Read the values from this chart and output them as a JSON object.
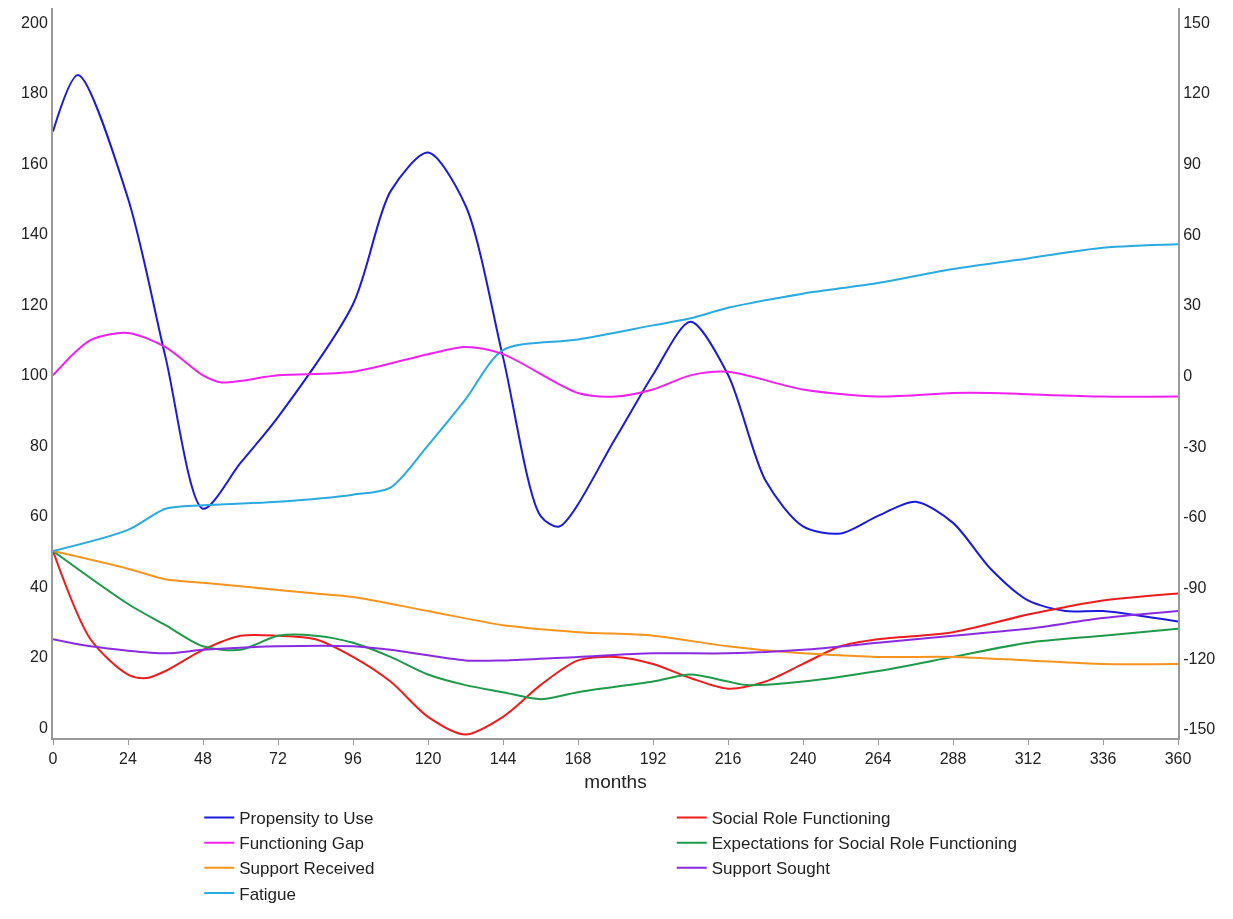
{
  "chart_data": {
    "type": "line",
    "xlabel": "months",
    "xlim": [
      0,
      360
    ],
    "xticks": [
      0,
      24,
      48,
      72,
      96,
      120,
      144,
      168,
      192,
      216,
      240,
      264,
      288,
      312,
      336,
      360
    ],
    "ylim": [
      -3,
      204
    ],
    "yticks": [
      0,
      20,
      40,
      60,
      80,
      100,
      120,
      140,
      160,
      180,
      200
    ],
    "y2lim": [
      -154,
      156
    ],
    "y2ticks": [
      -150,
      -120,
      -90,
      -60,
      -30,
      0,
      30,
      60,
      90,
      120,
      150
    ],
    "grid": false,
    "legend": "bottom",
    "marker": "none",
    "line_style": "solid",
    "series": [
      {
        "name": "Propensity to Use",
        "color": "#1a1adf",
        "x": [
          0,
          8,
          24,
          36,
          48,
          60,
          72,
          96,
          108,
          120,
          132,
          144,
          156,
          162,
          180,
          192,
          204,
          216,
          228,
          240,
          252,
          264,
          276,
          288,
          300,
          312,
          324,
          336,
          360
        ],
        "values": [
          169,
          185,
          150,
          105,
          62,
          75,
          88,
          120,
          152,
          163,
          148,
          105,
          60,
          57,
          82,
          100,
          115,
          100,
          70,
          57,
          55,
          60,
          64,
          58,
          45,
          36,
          33,
          33,
          30
        ]
      },
      {
        "name": "Social Role Functioning",
        "color": "#ee1c1c",
        "x": [
          0,
          12,
          24,
          30,
          36,
          48,
          60,
          72,
          84,
          96,
          108,
          120,
          132,
          144,
          156,
          168,
          180,
          192,
          204,
          216,
          228,
          240,
          252,
          264,
          288,
          312,
          336,
          360
        ],
        "values": [
          50,
          25,
          15,
          14,
          16,
          22,
          26,
          26,
          25,
          20,
          13,
          3,
          -2,
          3,
          12,
          19,
          20,
          18,
          14,
          11,
          13,
          18,
          23,
          25,
          27,
          32,
          36,
          38
        ]
      },
      {
        "name": "Functioning Gap",
        "color": "#f020f0",
        "axis": "y2",
        "x": [
          0,
          12,
          24,
          36,
          48,
          54,
          72,
          96,
          120,
          132,
          144,
          168,
          180,
          192,
          204,
          216,
          240,
          264,
          288,
          300,
          336,
          360
        ],
        "values": [
          0,
          15,
          18,
          12,
          0,
          -3,
          0,
          1.5,
          9,
          12,
          9,
          -7.5,
          -9,
          -6,
          0,
          1.5,
          -6,
          -9,
          -7.5,
          -7.5,
          -9,
          -9
        ]
      },
      {
        "name": "Expectations for Social Role Functioning",
        "color": "#1f9a4a",
        "x": [
          0,
          24,
          36,
          48,
          60,
          72,
          84,
          96,
          108,
          120,
          132,
          144,
          156,
          168,
          192,
          204,
          216,
          222,
          240,
          264,
          288,
          312,
          336,
          360
        ],
        "values": [
          50,
          35,
          29,
          23,
          22,
          26,
          26,
          24,
          20,
          15,
          12,
          10,
          8,
          10,
          13,
          15,
          13,
          12,
          13,
          16,
          20,
          24,
          26,
          28
        ]
      },
      {
        "name": "Support Received",
        "color": "#f7941d",
        "x": [
          0,
          24,
          36,
          48,
          60,
          84,
          96,
          120,
          144,
          168,
          192,
          216,
          240,
          264,
          288,
          312,
          336,
          360
        ],
        "values": [
          50,
          45,
          42,
          41,
          40,
          38,
          37,
          33,
          29,
          27,
          26,
          23,
          21,
          20,
          20,
          19,
          18,
          18
        ]
      },
      {
        "name": "Support Sought",
        "color": "#8a2be2",
        "x": [
          0,
          12,
          36,
          48,
          72,
          96,
          108,
          132,
          144,
          168,
          192,
          216,
          240,
          264,
          288,
          312,
          336,
          360
        ],
        "values": [
          25,
          23,
          21,
          22,
          23,
          23,
          22,
          19,
          19,
          20,
          21,
          21,
          22,
          24,
          26,
          28,
          31,
          33
        ]
      },
      {
        "name": "Fatigue",
        "color": "#29abe2",
        "x": [
          0,
          24,
          36,
          48,
          72,
          96,
          108,
          120,
          132,
          144,
          168,
          192,
          204,
          216,
          240,
          264,
          288,
          312,
          336,
          360
        ],
        "values": [
          50,
          56,
          62,
          63,
          64,
          66,
          68,
          80,
          93,
          107,
          110,
          114,
          116,
          119,
          123,
          126,
          130,
          133,
          136,
          137
        ]
      }
    ]
  }
}
